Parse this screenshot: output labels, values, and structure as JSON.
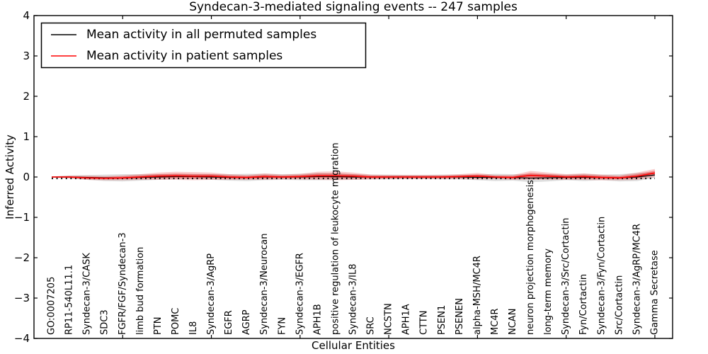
{
  "title": "Syndecan-3-mediated signaling events -- 247 samples",
  "axes": {
    "ylabel": "Inferred Activity",
    "xlabel": "Cellular Entities",
    "ytick_labels": [
      "4",
      "3",
      "2",
      "1",
      "0",
      "−1",
      "−2",
      "−3",
      "−4"
    ]
  },
  "legend": {
    "items": [
      {
        "label": "Mean activity in all permuted samples",
        "color": "#000000"
      },
      {
        "label": "Mean activity in patient samples",
        "color": "#ff0000"
      }
    ]
  },
  "colors": {
    "permuted_line": "#000000",
    "patient_line": "#ff0000",
    "patient_band": "#e41a1c",
    "permuted_band": "#000000",
    "background": "#ffffff"
  },
  "chart_data": {
    "type": "line",
    "title": "Syndecan-3-mediated signaling events -- 247 samples",
    "xlabel": "Cellular Entities",
    "ylabel": "Inferred Activity",
    "ylim": [
      -4,
      4
    ],
    "yticks": [
      4,
      3,
      2,
      1,
      0,
      -1,
      -2,
      -3,
      -4
    ],
    "xticks": [
      5,
      10,
      15,
      20,
      25,
      30,
      35
    ],
    "xlim": [
      0,
      36
    ],
    "grid": false,
    "legend_position": "upper left",
    "zero_line": {
      "style": "dotted",
      "color": "#000000",
      "y": 0
    },
    "categories": [
      "GO:0007205",
      "RP11-540L11.1",
      "Syndecan-3/CASK",
      "SDC3",
      "FGFR/FGF/Syndecan-3",
      "limb bud formation",
      "PTN",
      "POMC",
      "IL8",
      "Syndecan-3/AgRP",
      "EGFR",
      "AGRP",
      "Syndecan-3/Neurocan",
      "FYN",
      "Syndecan-3/EGFR",
      "APH1B",
      "positive regulation of leukocyte migration",
      "Syndecan-3/IL8",
      "SRC",
      "NCSTN",
      "APH1A",
      "CTTN",
      "PSEN1",
      "PSENEN",
      "alpha-MSH/MC4R",
      "MC4R",
      "NCAN",
      "neuron projection morphogenesis",
      "long-term memory",
      "Syndecan-3/Src/Cortactin",
      "Fyn/Cortactin",
      "Syndecan-3/Fyn/Cortactin",
      "Src/Cortactin",
      "Syndecan-3/AgRP/MC4R",
      "Gamma Secretase"
    ],
    "series": [
      {
        "name": "Mean activity in all permuted samples",
        "color": "#000000",
        "values": [
          0,
          0,
          -0.01,
          -0.02,
          -0.02,
          -0.01,
          0,
          0.01,
          0.01,
          0,
          -0.01,
          -0.01,
          0,
          0,
          0,
          0.01,
          0.01,
          0,
          0,
          0,
          0,
          0,
          0,
          0,
          -0.01,
          -0.01,
          -0.01,
          -0.03,
          -0.02,
          -0.01,
          -0.01,
          -0.01,
          -0.02,
          0,
          0.05
        ],
        "band_halfwidth": [
          0.01,
          0.04,
          0.06,
          0.08,
          0.09,
          0.08,
          0.07,
          0.06,
          0.06,
          0.07,
          0.08,
          0.09,
          0.08,
          0.07,
          0.08,
          0.09,
          0.08,
          0.07,
          0.06,
          0.06,
          0.05,
          0.05,
          0.06,
          0.06,
          0.07,
          0.09,
          0.08,
          0.1,
          0.09,
          0.07,
          0.09,
          0.07,
          0.09,
          0.1,
          0.07
        ]
      },
      {
        "name": "Mean activity in patient samples",
        "color": "#ff0000",
        "values": [
          0,
          0,
          -0.02,
          -0.03,
          -0.02,
          0,
          0.02,
          0.03,
          0.02,
          0.02,
          0,
          -0.01,
          0.01,
          0,
          0.01,
          0.03,
          0.03,
          0.02,
          0,
          0,
          0,
          0,
          0,
          0.01,
          0.02,
          0,
          -0.01,
          0.04,
          0.02,
          0,
          0.01,
          -0.01,
          -0.02,
          0.02,
          0.1
        ],
        "band_halfwidth": [
          0.01,
          0.03,
          0.05,
          0.05,
          0.06,
          0.07,
          0.09,
          0.1,
          0.1,
          0.09,
          0.07,
          0.06,
          0.08,
          0.06,
          0.07,
          0.1,
          0.11,
          0.09,
          0.06,
          0.05,
          0.05,
          0.05,
          0.05,
          0.06,
          0.08,
          0.05,
          0.06,
          0.11,
          0.09,
          0.07,
          0.08,
          0.07,
          0.06,
          0.09,
          0.1
        ]
      }
    ]
  }
}
